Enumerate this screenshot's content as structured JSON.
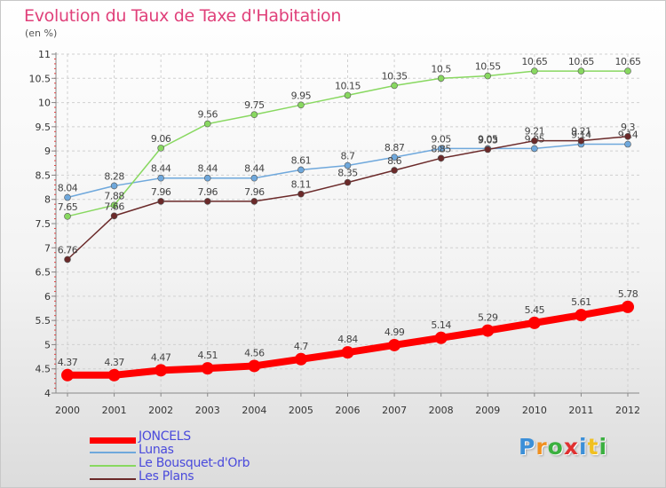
{
  "header": {
    "title": "Evolution du Taux de Taxe d'Habitation",
    "subtitle": "(en %)"
  },
  "logo": {
    "text": "Proxiti",
    "letters": [
      "P",
      "r",
      "o",
      "x",
      "i",
      "t",
      "i"
    ],
    "colors": [
      "#3b8fd8",
      "#f09020",
      "#3bb040",
      "#e03030",
      "#3b8fd8",
      "#f0c020",
      "#3bb040"
    ]
  },
  "chart_data": {
    "type": "line",
    "title": "Evolution du Taux de Taxe d'Habitation",
    "subtitle": "(en %)",
    "xlabel": "",
    "ylabel": "",
    "x": [
      "2000",
      "2001",
      "2002",
      "2003",
      "2004",
      "2005",
      "2006",
      "2007",
      "2008",
      "2009",
      "2010",
      "2011",
      "2012"
    ],
    "ylim": [
      4,
      11
    ],
    "yticks": [
      "4",
      "4.5",
      "5",
      "5.5",
      "6",
      "6.5",
      "7",
      "7.5",
      "8",
      "8.5",
      "9",
      "9.5",
      "10",
      "10.5",
      "11"
    ],
    "grid": true,
    "legend_position": "bottom-left",
    "series": [
      {
        "name": "JONCELS",
        "color": "#ff0000",
        "width": 8,
        "marker": 7,
        "values": [
          4.37,
          4.37,
          4.47,
          4.51,
          4.56,
          4.7,
          4.84,
          4.99,
          5.14,
          5.29,
          5.45,
          5.61,
          5.78
        ],
        "labels": [
          "4.37",
          "4.37",
          "4.47",
          "4.51",
          "4.56",
          "4.7",
          "4.84",
          "4.99",
          "5.14",
          "5.29",
          "5.45",
          "5.61",
          "5.78"
        ]
      },
      {
        "name": "Lunas",
        "color": "#6fa8dc",
        "width": 1.5,
        "marker": 3.5,
        "values": [
          8.04,
          8.28,
          8.44,
          8.44,
          8.44,
          8.61,
          8.7,
          8.87,
          9.05,
          9.05,
          9.05,
          9.14,
          9.14
        ],
        "labels": [
          "8.04",
          "8.28",
          "8.44",
          "8.44",
          "8.44",
          "8.61",
          "8.7",
          "8.87",
          "9.05",
          "9.05",
          "9.05",
          "9.14",
          "9.14"
        ]
      },
      {
        "name": "Le Bousquet-d'Orb",
        "color": "#88d860",
        "width": 1.5,
        "marker": 3.5,
        "values": [
          7.65,
          7.88,
          9.06,
          9.56,
          9.75,
          9.95,
          10.15,
          10.35,
          10.5,
          10.55,
          10.65,
          10.65,
          10.65
        ],
        "labels": [
          "7.65",
          "7.88",
          "9.06",
          "9.56",
          "9.75",
          "9.95",
          "10.15",
          "10.35",
          "10.5",
          "10.55",
          "10.65",
          "10.65",
          "10.65"
        ]
      },
      {
        "name": "Les Plans",
        "color": "#6b2a2a",
        "width": 1.5,
        "marker": 3.5,
        "values": [
          6.76,
          7.66,
          7.96,
          7.96,
          7.96,
          8.11,
          8.35,
          8.6,
          8.85,
          9.03,
          9.21,
          9.21,
          9.3
        ],
        "labels": [
          "6.76",
          "7.66",
          "7.96",
          "7.96",
          "7.96",
          "8.11",
          "8.35",
          "8.6",
          "8.85",
          "9.03",
          "9.21",
          "9.21",
          "9.3"
        ]
      }
    ]
  }
}
